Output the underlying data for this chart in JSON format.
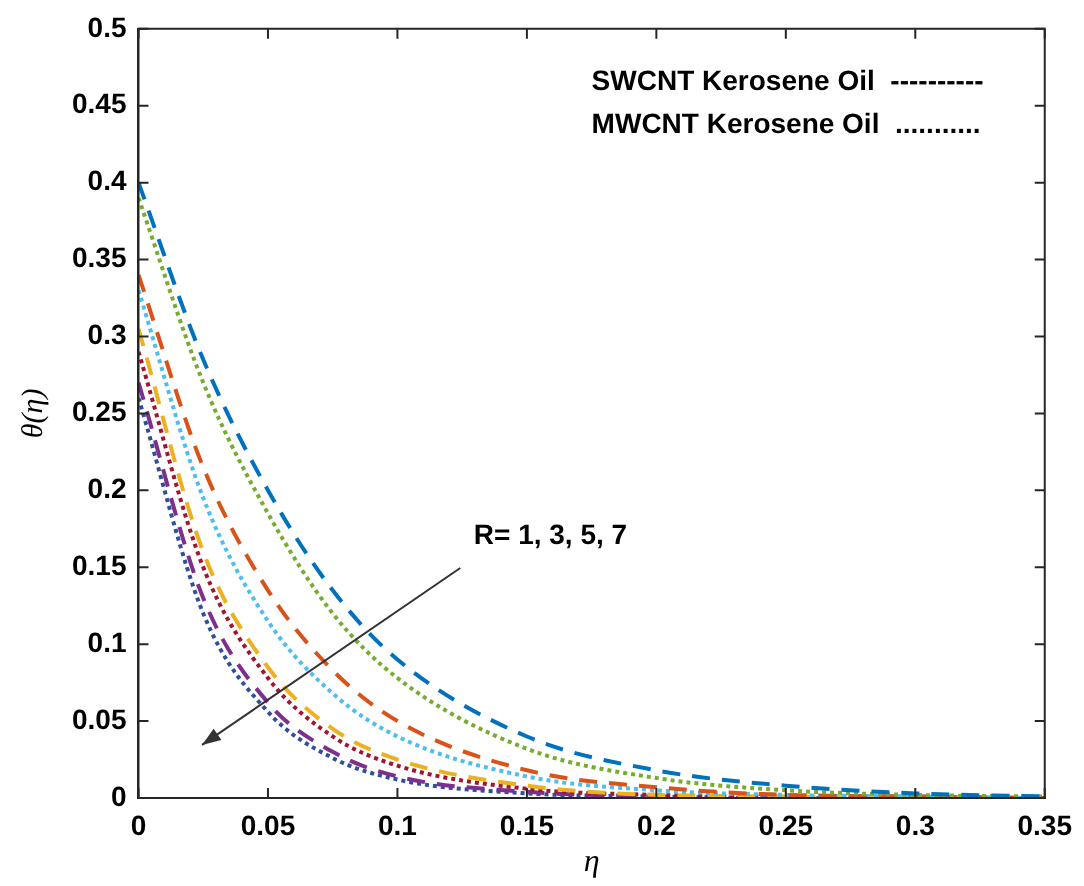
{
  "chart_data": {
    "type": "line",
    "xlabel": "η",
    "ylabel": "θ(η)",
    "x": [
      0,
      0.025,
      0.05,
      0.075,
      0.1,
      0.15,
      0.2,
      0.25,
      0.3,
      0.35
    ],
    "series": [
      {
        "color": "#0072bd",
        "line_style": "dashed",
        "values": [
          0.4,
          0.285,
          0.2,
          0.135,
          0.09,
          0.04,
          0.018,
          0.008,
          0.003,
          0.001
        ]
      },
      {
        "color": "#77ac30",
        "line_style": "dotted",
        "values": [
          0.39,
          0.27,
          0.185,
          0.12,
          0.078,
          0.032,
          0.013,
          0.005,
          0.002,
          0.001
        ]
      },
      {
        "color": "#d95319",
        "line_style": "dashed",
        "values": [
          0.34,
          0.215,
          0.135,
          0.083,
          0.05,
          0.018,
          0.007,
          0.002,
          0.001,
          0
        ]
      },
      {
        "color": "#4dbeee",
        "line_style": "dotted",
        "values": [
          0.33,
          0.195,
          0.115,
          0.068,
          0.04,
          0.014,
          0.005,
          0.002,
          0.001,
          0
        ]
      },
      {
        "color": "#edb120",
        "line_style": "dashed",
        "values": [
          0.305,
          0.16,
          0.085,
          0.045,
          0.025,
          0.008,
          0.002,
          0.001,
          0,
          0
        ]
      },
      {
        "color": "#a2142f",
        "line_style": "dotted",
        "values": [
          0.29,
          0.15,
          0.078,
          0.04,
          0.021,
          0.006,
          0.002,
          0.001,
          0,
          0
        ]
      },
      {
        "color": "#7e2f8e",
        "line_style": "dashed",
        "values": [
          0.27,
          0.13,
          0.062,
          0.03,
          0.014,
          0.004,
          0.001,
          0,
          0,
          0
        ]
      },
      {
        "color": "#2e4f9e",
        "line_style": "dotted",
        "values": [
          0.26,
          0.12,
          0.056,
          0.026,
          0.012,
          0.003,
          0.001,
          0,
          0,
          0
        ]
      }
    ],
    "xlim": [
      0,
      0.35
    ],
    "xticks": [
      0,
      0.05,
      0.1,
      0.15,
      0.2,
      0.25,
      0.3,
      0.35
    ],
    "ylim": [
      0,
      0.5
    ],
    "yticks": [
      0,
      0.05,
      0.1,
      0.15,
      0.2,
      0.25,
      0.3,
      0.35,
      0.4,
      0.45,
      0.5
    ],
    "grid": false,
    "legend": false,
    "marker": "none",
    "annotations": [
      "SWCNT Kerosene Oil  ----------",
      "MWCNT Kerosene Oil  ...........",
      "R= 1, 3, 5, 7"
    ]
  }
}
